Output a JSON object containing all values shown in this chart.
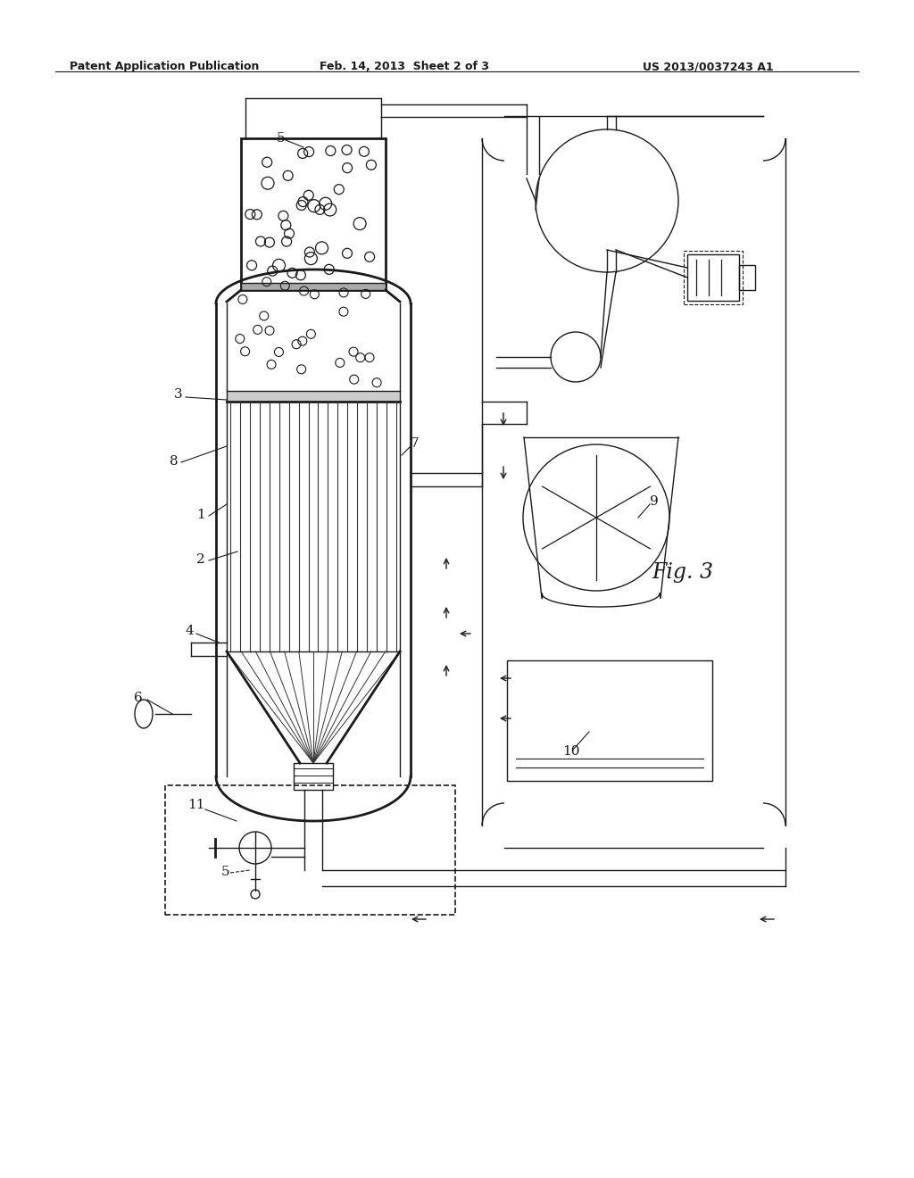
{
  "bg_color": "#ffffff",
  "line_color": "#1a1a1a",
  "title_left": "Patent Application Publication",
  "title_mid": "Feb. 14, 2013  Sheet 2 of 3",
  "title_right": "US 2013/0037243 A1",
  "fig_label": "Fig. 3"
}
